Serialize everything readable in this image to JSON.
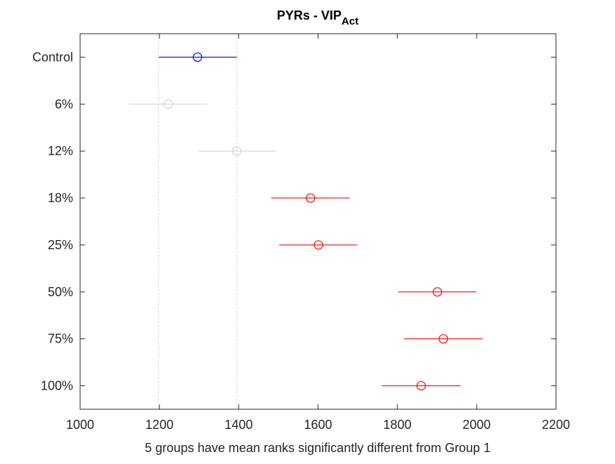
{
  "chart_data": {
    "type": "scatter",
    "title": "PYRs - VIP",
    "title_subscript": "Act",
    "xlabel": "5 groups have mean ranks significantly different from Group 1",
    "ylabel": "",
    "xlim": [
      1000,
      2200
    ],
    "xticks": [
      "1000",
      "1200",
      "1400",
      "1600",
      "1800",
      "2000",
      "2200"
    ],
    "categories": [
      "Control",
      "6%",
      "12%",
      "18%",
      "25%",
      "50%",
      "75%",
      "100%"
    ],
    "series": [
      {
        "points": [
          {
            "group": "Control",
            "mean": 1296,
            "lower": 1198,
            "upper": 1395,
            "color": "#0000ff"
          },
          {
            "group": "6%",
            "mean": 1222,
            "lower": 1123,
            "upper": 1320,
            "color": "#d3d3d3"
          },
          {
            "group": "12%",
            "mean": 1395,
            "lower": 1296,
            "upper": 1493,
            "color": "#d3d3d3"
          },
          {
            "group": "18%",
            "mean": 1581,
            "lower": 1482,
            "upper": 1680,
            "color": "#ff0000"
          },
          {
            "group": "25%",
            "mean": 1601,
            "lower": 1502,
            "upper": 1699,
            "color": "#ff0000"
          },
          {
            "group": "50%",
            "mean": 1901,
            "lower": 1802,
            "upper": 1999,
            "color": "#ff0000"
          },
          {
            "group": "75%",
            "mean": 1916,
            "lower": 1817,
            "upper": 2015,
            "color": "#ff0000"
          },
          {
            "group": "100%",
            "mean": 1860,
            "lower": 1761,
            "upper": 1959,
            "color": "#ff0000"
          }
        ]
      }
    ],
    "reference_lines": [
      1198,
      1395
    ],
    "grid": false,
    "legend": "none",
    "colors": {
      "control": "#0000ff",
      "not_significant": "#d3d3d3",
      "significant": "#ff0000",
      "reference": "#c8c8c8",
      "axis": "#262626"
    }
  }
}
